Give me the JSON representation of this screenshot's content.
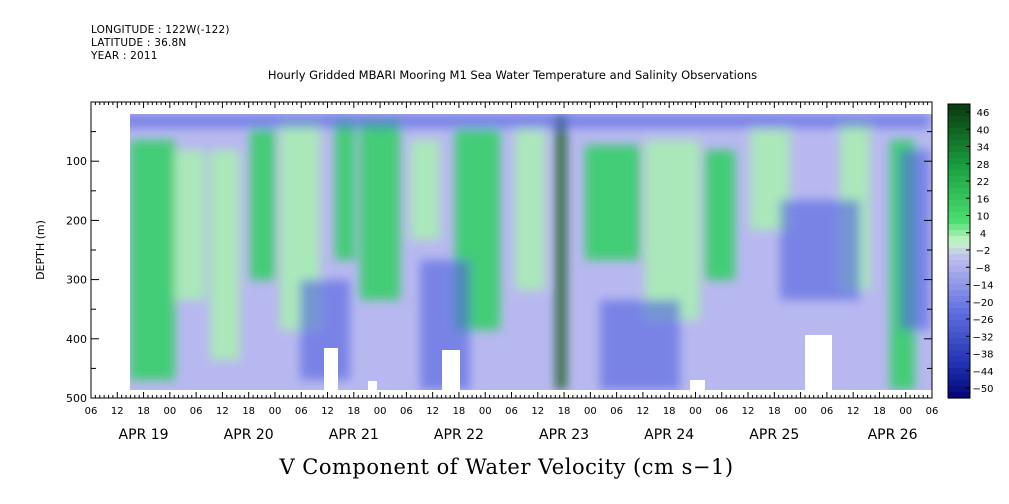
{
  "header": {
    "longitude": "LONGITUDE : 122W(-122)",
    "latitude": "LATITUDE : 36.8N",
    "year": "YEAR : 2011"
  },
  "chart_data": {
    "type": "heatmap",
    "title": "Hourly Gridded MBARI Mooring M1 Sea Water Temperature and Salinity Observations",
    "subtitle": "V Component of Water Velocity (cm s−1)",
    "ylabel": "DEPTH (m)",
    "ylim": [
      500,
      0
    ],
    "yticks": [
      100,
      200,
      300,
      400,
      500
    ],
    "x_hour_labels": [
      "06",
      "12",
      "18",
      "00",
      "06",
      "12",
      "18",
      "00",
      "06",
      "12",
      "18",
      "00",
      "06",
      "12",
      "18",
      "00",
      "06",
      "12",
      "18",
      "00",
      "06",
      "12",
      "18",
      "00",
      "06",
      "12",
      "18",
      "00",
      "06",
      "12",
      "18",
      "00",
      "06"
    ],
    "x_date_labels": [
      "APR 19",
      "APR 20",
      "APR 21",
      "APR 22",
      "APR 23",
      "APR 24",
      "APR 25",
      "APR 26"
    ],
    "colorbar_labels": [
      "46",
      "40",
      "34",
      "28",
      "22",
      "16",
      "10",
      "4",
      "−2",
      "−8",
      "−14",
      "−20",
      "−26",
      "−32",
      "−38",
      "−44",
      "−50"
    ],
    "colorbar_range": [
      -50,
      48
    ],
    "colors": {
      "strong_positive": "#0a5a1a",
      "positive": "#2fd060",
      "weak_positive": "#a8f0b0",
      "weak_negative": "#b8b8f0",
      "negative": "#5060e0",
      "strong_negative": "#000080"
    }
  }
}
